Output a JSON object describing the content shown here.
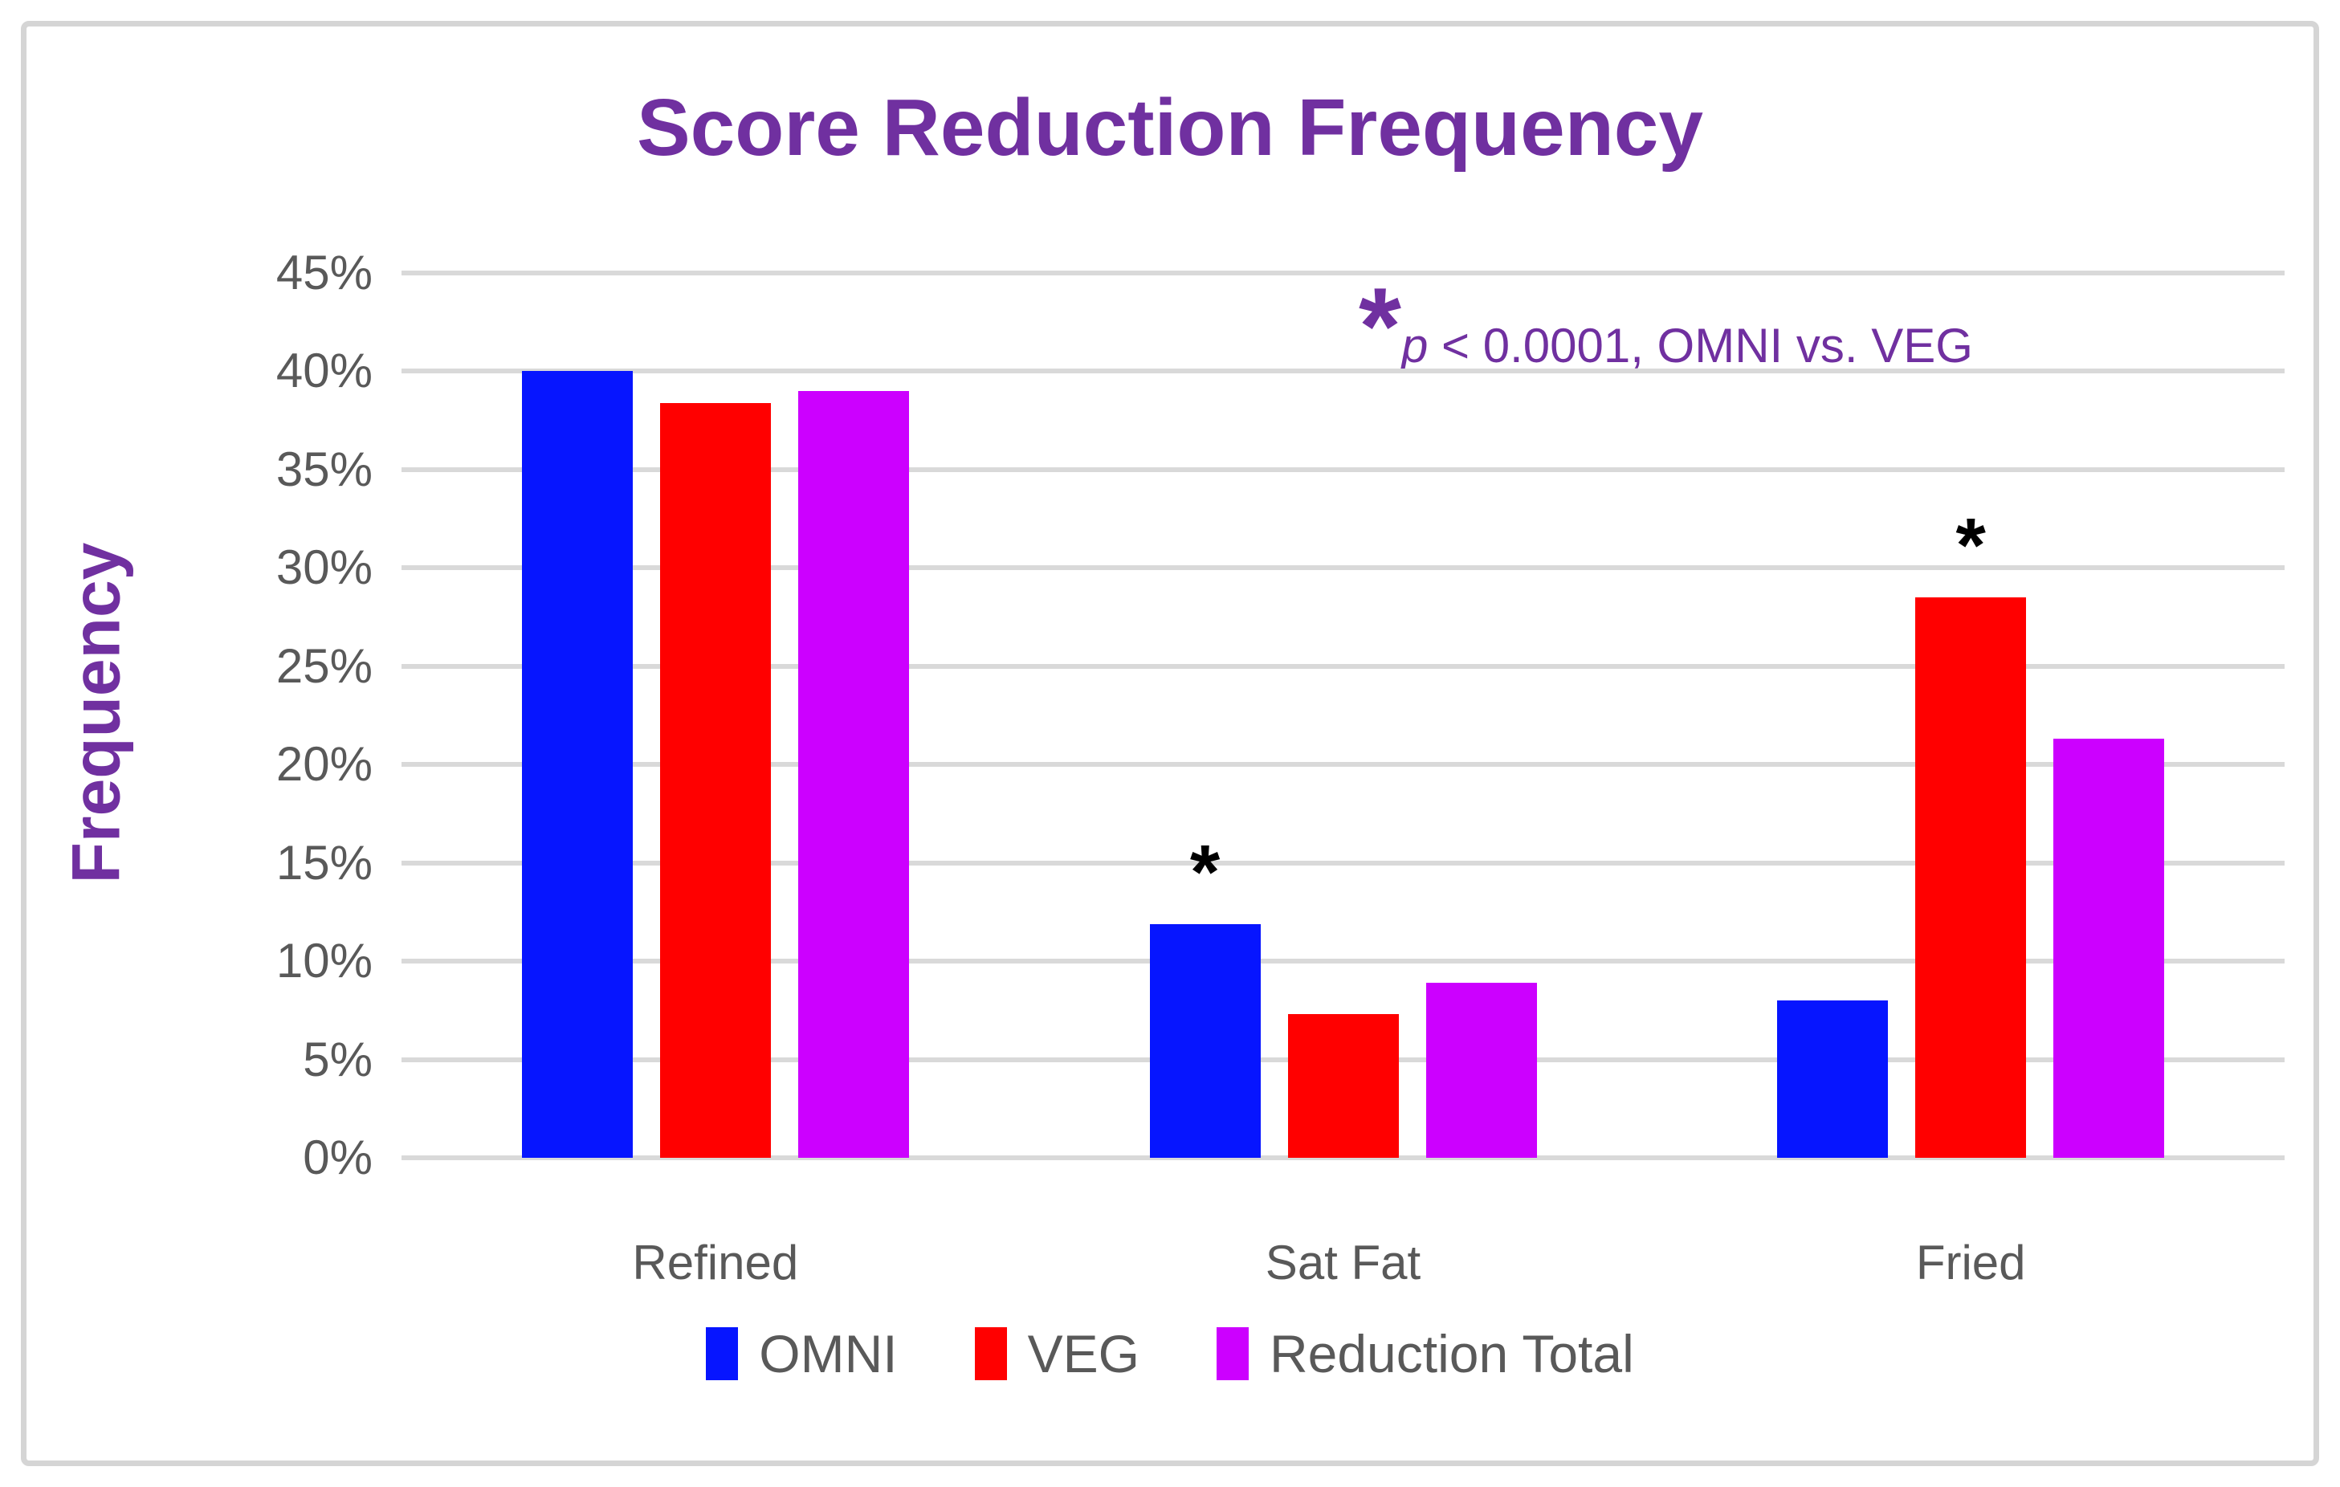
{
  "chart_data": {
    "type": "bar",
    "title": "Score Reduction Frequency",
    "ylabel": "Frequency",
    "xlabel": "",
    "categories": [
      "Refined",
      "Sat Fat",
      "Fried"
    ],
    "series": [
      {
        "name": "OMNI",
        "color": "#0615FF",
        "values": [
          40.0,
          11.9,
          8.0
        ]
      },
      {
        "name": "VEG",
        "color": "#FF0000",
        "values": [
          38.4,
          7.3,
          28.5
        ]
      },
      {
        "name": "Reduction Total",
        "color": "#CC00FF",
        "values": [
          39.0,
          8.9,
          21.3
        ]
      }
    ],
    "y_axis": {
      "min": 0,
      "max": 45,
      "step": 5,
      "tick_format": "{v}%"
    },
    "grid": true,
    "legend_position": "bottom",
    "significance_marks": [
      {
        "series": "OMNI",
        "category": "Sat Fat",
        "symbol": "*"
      },
      {
        "series": "VEG",
        "category": "Fried",
        "symbol": "*"
      }
    ],
    "annotation": {
      "star": "*",
      "p_symbol": "p",
      "text_after_p": " < 0.0001, OMNI vs. VEG"
    }
  },
  "colors": {
    "title_purple": "#7030A0",
    "axis_text_gray": "#595959",
    "gridline_gray": "#D9D9D9",
    "frame_border_gray": "#D5D5D5",
    "significance_black": "#000000",
    "background": "#FFFFFF"
  }
}
